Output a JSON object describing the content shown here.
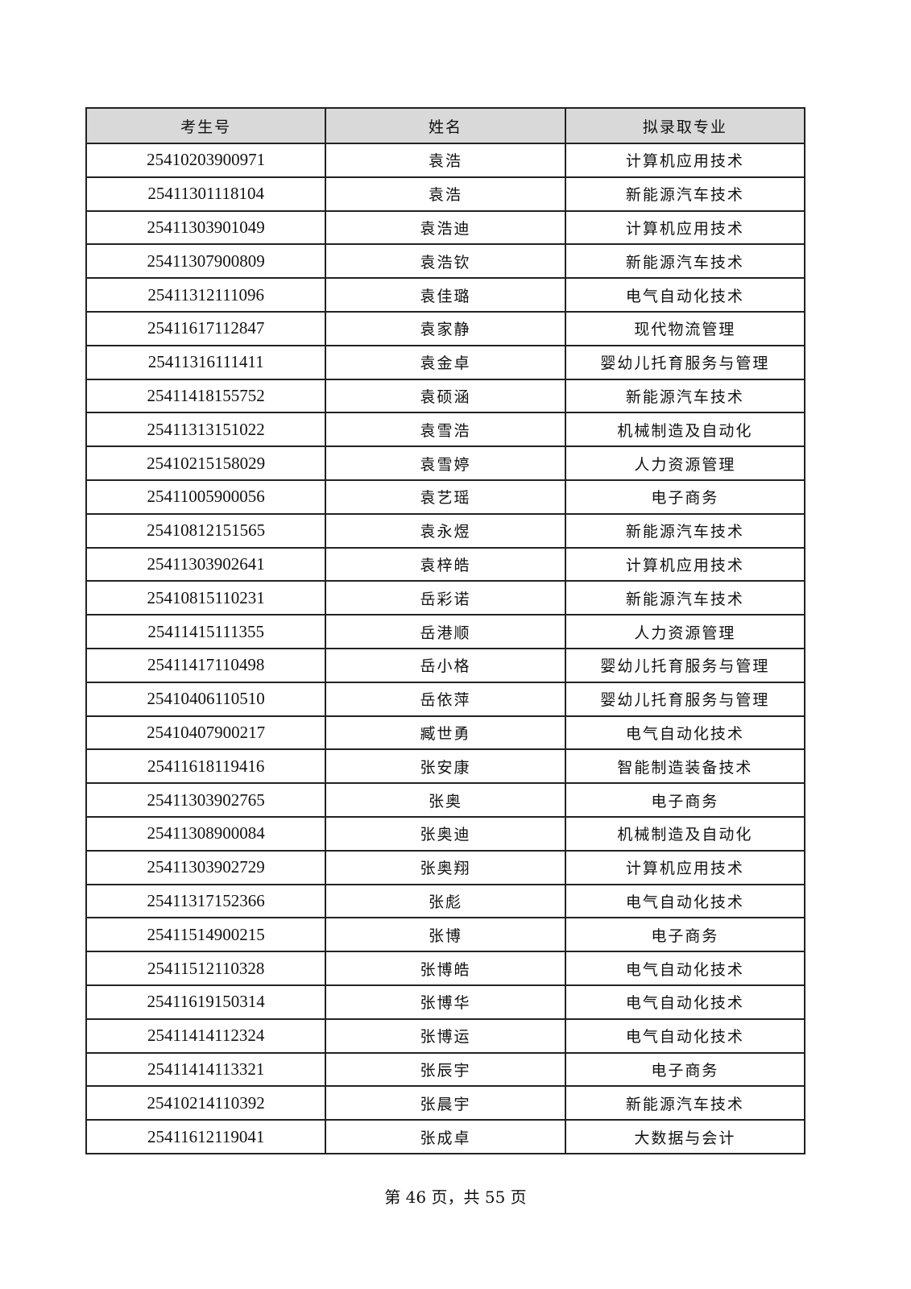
{
  "table": {
    "headers": [
      "考生号",
      "姓名",
      "拟录取专业"
    ],
    "rows": [
      [
        "25410203900971",
        "袁浩",
        "计算机应用技术"
      ],
      [
        "25411301118104",
        "袁浩",
        "新能源汽车技术"
      ],
      [
        "25411303901049",
        "袁浩迪",
        "计算机应用技术"
      ],
      [
        "25411307900809",
        "袁浩钦",
        "新能源汽车技术"
      ],
      [
        "25411312111096",
        "袁佳璐",
        "电气自动化技术"
      ],
      [
        "25411617112847",
        "袁家静",
        "现代物流管理"
      ],
      [
        "25411316111411",
        "袁金卓",
        "婴幼儿托育服务与管理"
      ],
      [
        "25411418155752",
        "袁硕涵",
        "新能源汽车技术"
      ],
      [
        "25411313151022",
        "袁雪浩",
        "机械制造及自动化"
      ],
      [
        "25410215158029",
        "袁雪婷",
        "人力资源管理"
      ],
      [
        "25411005900056",
        "袁艺瑶",
        "电子商务"
      ],
      [
        "25410812151565",
        "袁永煜",
        "新能源汽车技术"
      ],
      [
        "25411303902641",
        "袁梓皓",
        "计算机应用技术"
      ],
      [
        "25410815110231",
        "岳彩诺",
        "新能源汽车技术"
      ],
      [
        "25411415111355",
        "岳港顺",
        "人力资源管理"
      ],
      [
        "25411417110498",
        "岳小格",
        "婴幼儿托育服务与管理"
      ],
      [
        "25410406110510",
        "岳依萍",
        "婴幼儿托育服务与管理"
      ],
      [
        "25410407900217",
        "臧世勇",
        "电气自动化技术"
      ],
      [
        "25411618119416",
        "张安康",
        "智能制造装备技术"
      ],
      [
        "25411303902765",
        "张奥",
        "电子商务"
      ],
      [
        "25411308900084",
        "张奥迪",
        "机械制造及自动化"
      ],
      [
        "25411303902729",
        "张奥翔",
        "计算机应用技术"
      ],
      [
        "25411317152366",
        "张彪",
        "电气自动化技术"
      ],
      [
        "25411514900215",
        "张博",
        "电子商务"
      ],
      [
        "25411512110328",
        "张博皓",
        "电气自动化技术"
      ],
      [
        "25411619150314",
        "张博华",
        "电气自动化技术"
      ],
      [
        "25411414112324",
        "张博运",
        "电气自动化技术"
      ],
      [
        "25411414113321",
        "张辰宇",
        "电子商务"
      ],
      [
        "25410214110392",
        "张晨宇",
        "新能源汽车技术"
      ],
      [
        "25411612119041",
        "张成卓",
        "大数据与会计"
      ]
    ]
  },
  "footer": {
    "text": "第 46 页，共 55 页"
  }
}
